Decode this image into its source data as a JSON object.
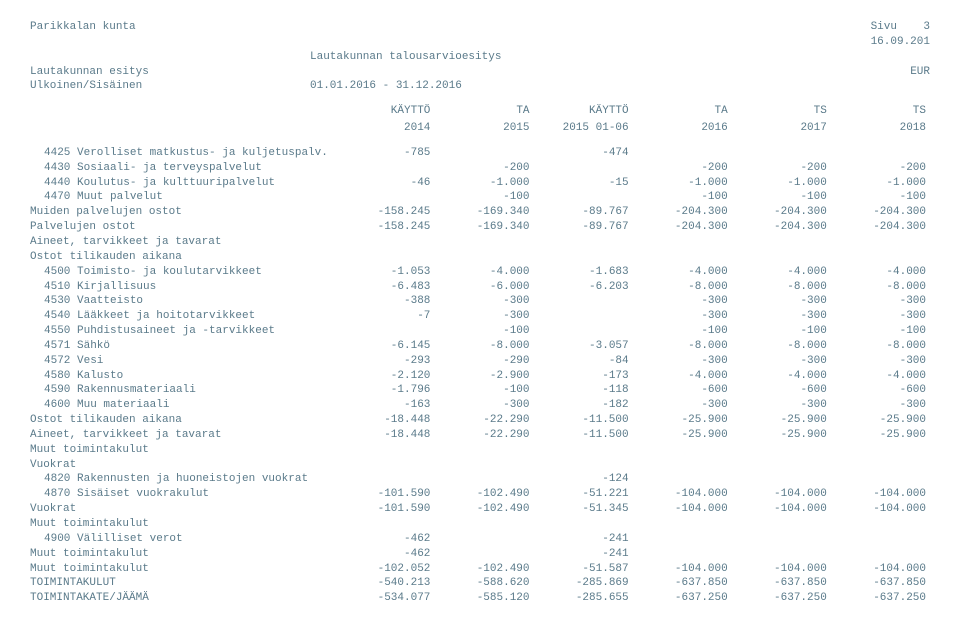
{
  "header": {
    "org": "Parikkalan kunta",
    "page_label": "Sivu",
    "page_num": "3",
    "date": "16.09.201",
    "title_center": "Lautakunnan talousarvioesitys",
    "line1_left": "Lautakunnan esitys",
    "line1_right": "EUR",
    "line2_left": "Ulkoinen/Sisäinen",
    "line2_center": "01.01.2016 - 31.12.2016"
  },
  "columns": {
    "c1a": "KÄYTTÖ",
    "c1b": "2014",
    "c2a": "TA",
    "c2b": "2015",
    "c3a": "KÄYTTÖ",
    "c3b": "2015 01-06",
    "c4a": "TA",
    "c4b": "2016",
    "c5a": "TS",
    "c5b": "2017",
    "c6a": "TS",
    "c6b": "2018"
  },
  "rows": [
    {
      "label": "4425 Verolliset matkustus- ja kuljetuspalv.",
      "indent": 1,
      "v": [
        "-785",
        "",
        "-474",
        "",
        "",
        ""
      ]
    },
    {
      "label": "4430 Sosiaali- ja terveyspalvelut",
      "indent": 1,
      "v": [
        "",
        "-200",
        "",
        "-200",
        "-200",
        "-200"
      ]
    },
    {
      "label": "4440 Koulutus- ja kulttuuripalvelut",
      "indent": 1,
      "v": [
        "-46",
        "-1.000",
        "-15",
        "-1.000",
        "-1.000",
        "-1.000"
      ]
    },
    {
      "label": "4470 Muut palvelut",
      "indent": 1,
      "v": [
        "",
        "-100",
        "",
        "-100",
        "-100",
        "-100"
      ]
    },
    {
      "label": "Muiden palvelujen ostot",
      "indent": 0,
      "v": [
        "-158.245",
        "-169.340",
        "-89.767",
        "-204.300",
        "-204.300",
        "-204.300"
      ]
    },
    {
      "label": "Palvelujen ostot",
      "indent": 0,
      "v": [
        "-158.245",
        "-169.340",
        "-89.767",
        "-204.300",
        "-204.300",
        "-204.300"
      ]
    },
    {
      "label": "Aineet, tarvikkeet ja tavarat",
      "indent": 0,
      "v": [
        "",
        "",
        "",
        "",
        "",
        ""
      ]
    },
    {
      "label": "Ostot tilikauden aikana",
      "indent": 0,
      "v": [
        "",
        "",
        "",
        "",
        "",
        ""
      ]
    },
    {
      "label": "4500 Toimisto- ja koulutarvikkeet",
      "indent": 1,
      "v": [
        "-1.053",
        "-4.000",
        "-1.683",
        "-4.000",
        "-4.000",
        "-4.000"
      ]
    },
    {
      "label": "4510 Kirjallisuus",
      "indent": 1,
      "v": [
        "-6.483",
        "-6.000",
        "-6.203",
        "-8.000",
        "-8.000",
        "-8.000"
      ]
    },
    {
      "label": "4530 Vaatteisto",
      "indent": 1,
      "v": [
        "-388",
        "-300",
        "",
        "-300",
        "-300",
        "-300"
      ]
    },
    {
      "label": "4540 Lääkkeet ja hoitotarvikkeet",
      "indent": 1,
      "v": [
        "-7",
        "-300",
        "",
        "-300",
        "-300",
        "-300"
      ]
    },
    {
      "label": "4550 Puhdistusaineet ja -tarvikkeet",
      "indent": 1,
      "v": [
        "",
        "-100",
        "",
        "-100",
        "-100",
        "-100"
      ]
    },
    {
      "label": "4571 Sähkö",
      "indent": 1,
      "v": [
        "-6.145",
        "-8.000",
        "-3.057",
        "-8.000",
        "-8.000",
        "-8.000"
      ]
    },
    {
      "label": "4572 Vesi",
      "indent": 1,
      "v": [
        "-293",
        "-290",
        "-84",
        "-300",
        "-300",
        "-300"
      ]
    },
    {
      "label": "4580 Kalusto",
      "indent": 1,
      "v": [
        "-2.120",
        "-2.900",
        "-173",
        "-4.000",
        "-4.000",
        "-4.000"
      ]
    },
    {
      "label": "4590 Rakennusmateriaali",
      "indent": 1,
      "v": [
        "-1.796",
        "-100",
        "-118",
        "-600",
        "-600",
        "-600"
      ]
    },
    {
      "label": "4600 Muu materiaali",
      "indent": 1,
      "v": [
        "-163",
        "-300",
        "-182",
        "-300",
        "-300",
        "-300"
      ]
    },
    {
      "label": "Ostot tilikauden aikana",
      "indent": 0,
      "v": [
        "-18.448",
        "-22.290",
        "-11.500",
        "-25.900",
        "-25.900",
        "-25.900"
      ]
    },
    {
      "label": "Aineet, tarvikkeet ja tavarat",
      "indent": 0,
      "v": [
        "-18.448",
        "-22.290",
        "-11.500",
        "-25.900",
        "-25.900",
        "-25.900"
      ]
    },
    {
      "label": "Muut toimintakulut",
      "indent": 0,
      "v": [
        "",
        "",
        "",
        "",
        "",
        ""
      ]
    },
    {
      "label": "Vuokrat",
      "indent": 0,
      "v": [
        "",
        "",
        "",
        "",
        "",
        ""
      ]
    },
    {
      "label": "4820 Rakennusten ja huoneistojen vuokrat",
      "indent": 1,
      "v": [
        "",
        "",
        "-124",
        "",
        "",
        ""
      ]
    },
    {
      "label": "4870 Sisäiset vuokrakulut",
      "indent": 1,
      "v": [
        "-101.590",
        "-102.490",
        "-51.221",
        "-104.000",
        "-104.000",
        "-104.000"
      ]
    },
    {
      "label": "Vuokrat",
      "indent": 0,
      "v": [
        "-101.590",
        "-102.490",
        "-51.345",
        "-104.000",
        "-104.000",
        "-104.000"
      ]
    },
    {
      "label": "Muut toimintakulut",
      "indent": 0,
      "v": [
        "",
        "",
        "",
        "",
        "",
        ""
      ]
    },
    {
      "label": "4900 Välilliset verot",
      "indent": 1,
      "v": [
        "-462",
        "",
        "-241",
        "",
        "",
        ""
      ]
    },
    {
      "label": "Muut toimintakulut",
      "indent": 0,
      "v": [
        "-462",
        "",
        "-241",
        "",
        "",
        ""
      ]
    },
    {
      "label": "Muut toimintakulut",
      "indent": 0,
      "v": [
        "-102.052",
        "-102.490",
        "-51.587",
        "-104.000",
        "-104.000",
        "-104.000"
      ]
    },
    {
      "label": "TOIMINTAKULUT",
      "indent": 0,
      "v": [
        "-540.213",
        "-588.620",
        "-285.869",
        "-637.850",
        "-637.850",
        "-637.850"
      ]
    },
    {
      "label": "TOIMINTAKATE/JÄÄMÄ",
      "indent": 0,
      "v": [
        "-534.077",
        "-585.120",
        "-285.655",
        "-637.250",
        "-637.250",
        "-637.250"
      ]
    }
  ]
}
